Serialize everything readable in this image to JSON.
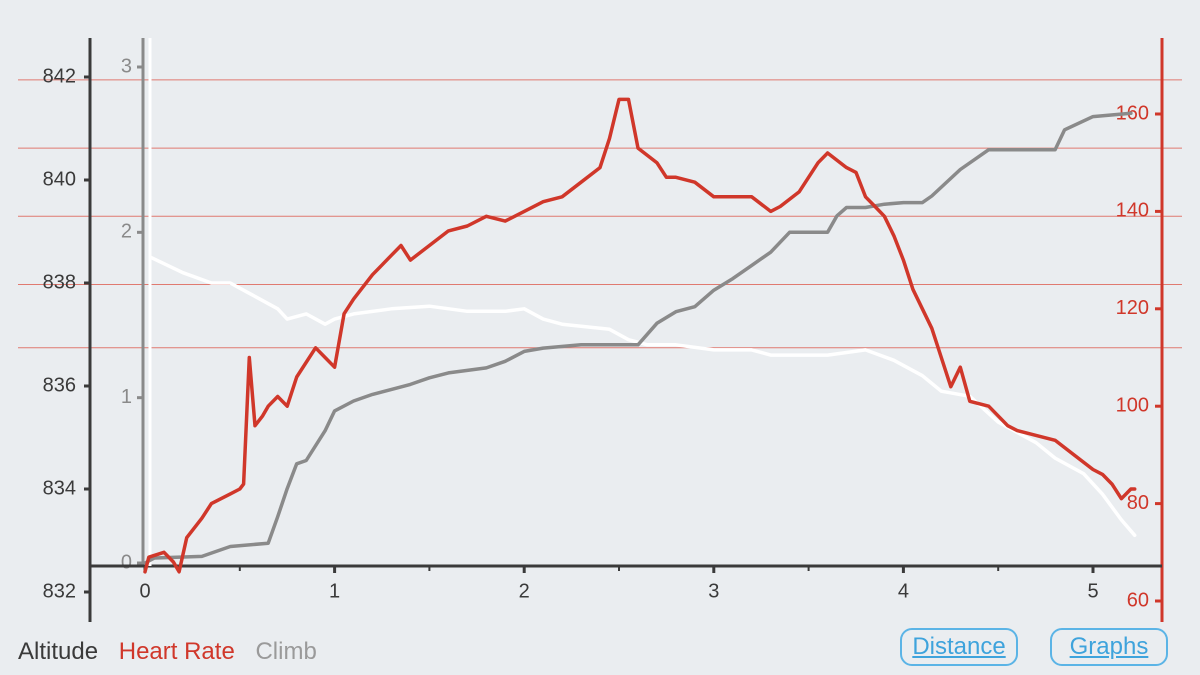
{
  "chart_data": {
    "type": "line",
    "x_label": "",
    "x_range": [
      0,
      5.3
    ],
    "x_ticks": [
      "0",
      "1",
      "2",
      "3",
      "4",
      "5"
    ],
    "axes": {
      "altitude": {
        "range": [
          832,
          842.8
        ],
        "ticks": [
          "832",
          "834",
          "836",
          "838",
          "840",
          "842"
        ],
        "color": "#3a3a3a"
      },
      "climb": {
        "range": [
          0,
          3.05
        ],
        "ticks": [
          "0",
          "1",
          "2",
          "3"
        ],
        "color": "#8a8a8a"
      },
      "heart_rate": {
        "range": [
          57,
          173
        ],
        "ticks": [
          "60",
          "80",
          "100",
          "120",
          "140",
          "160"
        ],
        "color": "#d0372a"
      }
    },
    "reference_lines_hr": [
      112,
      125,
      139,
      153,
      167
    ],
    "series": [
      {
        "name": "Altitude",
        "axis": "altitude",
        "color": "#ffffff",
        "points": [
          [
            0.03,
            838.5
          ],
          [
            0.2,
            838.2
          ],
          [
            0.35,
            838
          ],
          [
            0.45,
            838
          ],
          [
            0.55,
            837.8
          ],
          [
            0.7,
            837.5
          ],
          [
            0.75,
            837.3
          ],
          [
            0.85,
            837.4
          ],
          [
            0.95,
            837.2
          ],
          [
            1.0,
            837.3
          ],
          [
            1.1,
            837.4
          ],
          [
            1.3,
            837.5
          ],
          [
            1.5,
            837.55
          ],
          [
            1.7,
            837.45
          ],
          [
            1.9,
            837.45
          ],
          [
            2.0,
            837.5
          ],
          [
            2.1,
            837.3
          ],
          [
            2.2,
            837.2
          ],
          [
            2.45,
            837.1
          ],
          [
            2.55,
            836.9
          ],
          [
            2.65,
            836.8
          ],
          [
            2.8,
            836.8
          ],
          [
            3.0,
            836.7
          ],
          [
            3.2,
            836.7
          ],
          [
            3.3,
            836.6
          ],
          [
            3.45,
            836.6
          ],
          [
            3.6,
            836.6
          ],
          [
            3.8,
            836.7
          ],
          [
            3.95,
            836.5
          ],
          [
            4.1,
            836.2
          ],
          [
            4.2,
            835.9
          ],
          [
            4.35,
            835.8
          ],
          [
            4.5,
            835.3
          ],
          [
            4.7,
            834.9
          ],
          [
            4.8,
            834.6
          ],
          [
            4.95,
            834.3
          ],
          [
            5.05,
            833.9
          ],
          [
            5.15,
            833.4
          ],
          [
            5.22,
            833.1
          ]
        ]
      },
      {
        "name": "Heart Rate",
        "axis": "heart_rate",
        "color": "#d0372a",
        "points": [
          [
            0.0,
            66
          ],
          [
            0.02,
            69
          ],
          [
            0.1,
            70
          ],
          [
            0.15,
            68
          ],
          [
            0.18,
            66
          ],
          [
            0.22,
            73
          ],
          [
            0.3,
            77
          ],
          [
            0.35,
            80
          ],
          [
            0.45,
            82
          ],
          [
            0.5,
            83
          ],
          [
            0.52,
            84
          ],
          [
            0.55,
            110
          ],
          [
            0.58,
            96
          ],
          [
            0.62,
            98
          ],
          [
            0.65,
            100
          ],
          [
            0.7,
            102
          ],
          [
            0.75,
            100
          ],
          [
            0.8,
            106
          ],
          [
            0.9,
            112
          ],
          [
            0.95,
            110
          ],
          [
            1.0,
            108
          ],
          [
            1.05,
            119
          ],
          [
            1.1,
            122
          ],
          [
            1.2,
            127
          ],
          [
            1.3,
            131
          ],
          [
            1.35,
            133
          ],
          [
            1.4,
            130
          ],
          [
            1.5,
            133
          ],
          [
            1.6,
            136
          ],
          [
            1.7,
            137
          ],
          [
            1.8,
            139
          ],
          [
            1.9,
            138
          ],
          [
            2.0,
            140
          ],
          [
            2.1,
            142
          ],
          [
            2.2,
            143
          ],
          [
            2.3,
            146
          ],
          [
            2.4,
            149
          ],
          [
            2.45,
            155
          ],
          [
            2.5,
            163
          ],
          [
            2.55,
            163
          ],
          [
            2.6,
            153
          ],
          [
            2.7,
            150
          ],
          [
            2.75,
            147
          ],
          [
            2.8,
            147
          ],
          [
            2.9,
            146
          ],
          [
            3.0,
            143
          ],
          [
            3.2,
            143
          ],
          [
            3.3,
            140
          ],
          [
            3.35,
            141
          ],
          [
            3.45,
            144
          ],
          [
            3.55,
            150
          ],
          [
            3.6,
            152
          ],
          [
            3.7,
            149
          ],
          [
            3.75,
            148
          ],
          [
            3.8,
            143
          ],
          [
            3.85,
            141
          ],
          [
            3.9,
            139
          ],
          [
            3.95,
            135
          ],
          [
            4.0,
            130
          ],
          [
            4.05,
            124
          ],
          [
            4.15,
            116
          ],
          [
            4.2,
            110
          ],
          [
            4.25,
            104
          ],
          [
            4.3,
            108
          ],
          [
            4.35,
            101
          ],
          [
            4.45,
            100
          ],
          [
            4.55,
            96
          ],
          [
            4.6,
            95
          ],
          [
            4.7,
            94
          ],
          [
            4.8,
            93
          ],
          [
            4.9,
            90
          ],
          [
            5.0,
            87
          ],
          [
            5.05,
            86
          ],
          [
            5.1,
            84
          ],
          [
            5.15,
            81
          ],
          [
            5.2,
            83
          ],
          [
            5.22,
            83
          ]
        ]
      },
      {
        "name": "Climb",
        "axis": "climb",
        "color": "#8a8a8a",
        "points": [
          [
            0.0,
            0.0
          ],
          [
            0.05,
            0.03
          ],
          [
            0.3,
            0.04
          ],
          [
            0.45,
            0.1
          ],
          [
            0.65,
            0.12
          ],
          [
            0.7,
            0.28
          ],
          [
            0.75,
            0.45
          ],
          [
            0.8,
            0.6
          ],
          [
            0.85,
            0.62
          ],
          [
            0.95,
            0.8
          ],
          [
            1.0,
            0.92
          ],
          [
            1.1,
            0.98
          ],
          [
            1.2,
            1.02
          ],
          [
            1.3,
            1.05
          ],
          [
            1.4,
            1.08
          ],
          [
            1.5,
            1.12
          ],
          [
            1.6,
            1.15
          ],
          [
            1.8,
            1.18
          ],
          [
            1.9,
            1.22
          ],
          [
            2.0,
            1.28
          ],
          [
            2.1,
            1.3
          ],
          [
            2.3,
            1.32
          ],
          [
            2.6,
            1.32
          ],
          [
            2.7,
            1.45
          ],
          [
            2.8,
            1.52
          ],
          [
            2.9,
            1.55
          ],
          [
            3.0,
            1.65
          ],
          [
            3.1,
            1.72
          ],
          [
            3.2,
            1.8
          ],
          [
            3.3,
            1.88
          ],
          [
            3.4,
            2.0
          ],
          [
            3.6,
            2.0
          ],
          [
            3.65,
            2.1
          ],
          [
            3.7,
            2.15
          ],
          [
            3.8,
            2.15
          ],
          [
            3.9,
            2.17
          ],
          [
            4.0,
            2.18
          ],
          [
            4.1,
            2.18
          ],
          [
            4.15,
            2.22
          ],
          [
            4.3,
            2.38
          ],
          [
            4.45,
            2.5
          ],
          [
            4.6,
            2.5
          ],
          [
            4.8,
            2.5
          ],
          [
            4.85,
            2.62
          ],
          [
            5.0,
            2.7
          ],
          [
            5.2,
            2.72
          ]
        ]
      }
    ]
  },
  "legend": {
    "altitude": "Altitude",
    "heart_rate": "Heart Rate",
    "climb": "Climb"
  },
  "buttons": {
    "distance": "Distance",
    "graphs": "Graphs"
  },
  "colors": {
    "background": "#eaedf0",
    "axis_dark": "#3a3a3a",
    "axis_climb": "#8a8a8a",
    "axis_hr": "#d0372a",
    "button": "#3ea3dc"
  }
}
